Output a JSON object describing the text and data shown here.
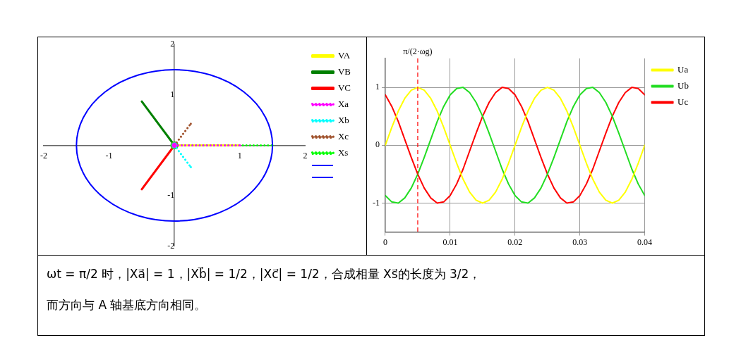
{
  "chart_data": [
    {
      "type": "line",
      "xlim": [
        -2,
        2
      ],
      "ylim": [
        -2,
        2
      ],
      "xticks": [
        -2,
        -1,
        {
          "value": 0,
          "label": null
        },
        1,
        2
      ],
      "yticks": [
        -2,
        -1,
        {
          "value": 0,
          "label": null
        },
        1,
        2
      ],
      "grid": false,
      "legend": "top right",
      "series": [
        {
          "name": "VA",
          "color": "#ffff00",
          "line_style": "solid",
          "x": [
            0,
            1
          ],
          "values": [
            0,
            0
          ]
        },
        {
          "name": "VB",
          "color": "#008000",
          "line_style": "solid",
          "x": [
            0,
            -0.5
          ],
          "values": [
            0,
            0.87
          ]
        },
        {
          "name": "VC",
          "color": "#ff0000",
          "line_style": "solid",
          "x": [
            0,
            -0.5
          ],
          "values": [
            0,
            -0.87
          ]
        },
        {
          "name": "Xa",
          "color": "#ff00ff",
          "line_style": "dotted",
          "x": [
            0,
            1
          ],
          "values": [
            0,
            0
          ]
        },
        {
          "name": "Xb",
          "color": "#00ffff",
          "line_style": "dotted",
          "x": [
            0,
            0.25
          ],
          "values": [
            0,
            -0.43
          ]
        },
        {
          "name": "Xc",
          "color": "#a0522d",
          "line_style": "dotted",
          "x": [
            0,
            0.25
          ],
          "values": [
            0,
            0.43
          ]
        },
        {
          "name": "Xs",
          "color": "#00ff00",
          "line_style": "dotted",
          "x": [
            0,
            1.5
          ],
          "values": [
            0,
            0
          ]
        }
      ]
    },
    {
      "type": "line",
      "xlim": [
        0,
        0.04
      ],
      "ylim": [
        -1.5,
        1.5
      ],
      "xticks": [
        0,
        0.01,
        0.02,
        0.03,
        0.04
      ],
      "yticks": [
        -1,
        0,
        1
      ],
      "grid": true,
      "legend": "top right",
      "x": [
        0,
        0.001,
        0.002,
        0.003,
        0.004,
        0.005,
        0.006,
        0.007,
        0.008,
        0.009,
        0.01,
        0.011,
        0.012,
        0.013,
        0.014,
        0.015,
        0.016,
        0.017,
        0.018,
        0.019,
        0.02,
        0.021,
        0.022,
        0.023,
        0.024,
        0.025,
        0.026,
        0.027,
        0.028,
        0.029,
        0.03,
        0.031,
        0.032,
        0.033,
        0.034,
        0.035,
        0.036,
        0.037,
        0.038,
        0.039,
        0.04
      ],
      "ref_lines": [
        {
          "axis": "x",
          "value": 0.005,
          "label": "π/(2·ωg)",
          "color": "#ff0000",
          "line_style": "dashed"
        }
      ],
      "series": [
        {
          "name": "Ua",
          "color": "#ffff00",
          "values": [
            0,
            0.31,
            0.59,
            0.81,
            0.95,
            1,
            0.95,
            0.81,
            0.59,
            0.31,
            0,
            -0.31,
            -0.59,
            -0.81,
            -0.95,
            -1,
            -0.95,
            -0.81,
            -0.59,
            -0.31,
            0,
            0.31,
            0.59,
            0.81,
            0.95,
            1,
            0.95,
            0.81,
            0.59,
            0.31,
            0,
            -0.31,
            -0.59,
            -0.81,
            -0.95,
            -1,
            -0.95,
            -0.81,
            -0.59,
            -0.31,
            0
          ]
        },
        {
          "name": "Ub",
          "color": "#22dd22",
          "values": [
            -0.87,
            -0.98,
            -1,
            -0.91,
            -0.74,
            -0.5,
            -0.21,
            0.1,
            0.41,
            0.67,
            0.87,
            0.98,
            1,
            0.91,
            0.74,
            0.5,
            0.21,
            -0.1,
            -0.41,
            -0.67,
            -0.87,
            -0.98,
            -1,
            -0.91,
            -0.74,
            -0.5,
            -0.21,
            0.1,
            0.41,
            0.67,
            0.87,
            0.98,
            1,
            0.91,
            0.74,
            0.5,
            0.21,
            -0.1,
            -0.41,
            -0.67,
            -0.87
          ]
        },
        {
          "name": "Uc",
          "color": "#ff0000",
          "values": [
            0.87,
            0.67,
            0.41,
            0.1,
            -0.21,
            -0.5,
            -0.74,
            -0.91,
            -1,
            -0.98,
            -0.87,
            -0.67,
            -0.41,
            -0.1,
            0.21,
            0.5,
            0.74,
            0.91,
            1,
            0.98,
            0.87,
            0.67,
            0.41,
            0.1,
            -0.21,
            -0.5,
            -0.74,
            -0.91,
            -1,
            -0.98,
            -0.87,
            -0.67,
            -0.41,
            -0.1,
            0.21,
            0.5,
            0.74,
            0.91,
            1,
            0.98,
            0.87
          ]
        }
      ]
    },
    {
      "type": "other",
      "annotations": [
        "ωt = π/2 时，|Xa⃗| = 1，|Xb⃗| = 1/2，|Xc⃗| = 1/2，合成相量 Xs⃗的长度为 3/2，",
        "而方向与 A 轴基底方向相同。"
      ]
    }
  ]
}
